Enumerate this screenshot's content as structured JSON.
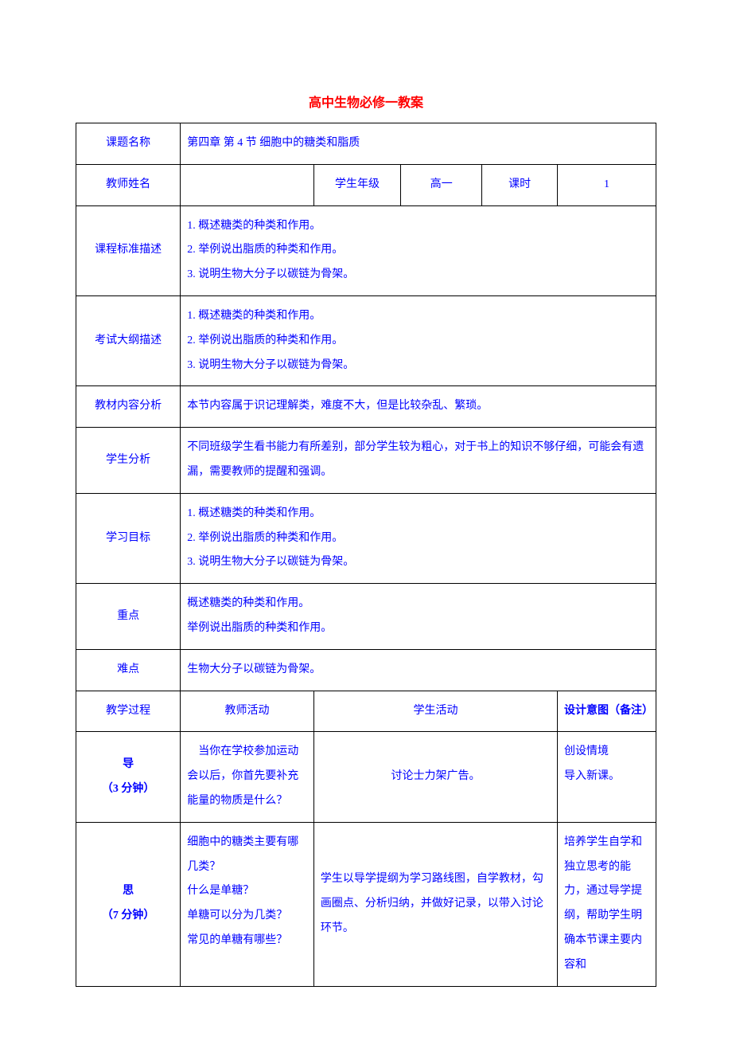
{
  "title": "高中生物必修一教案",
  "rows": {
    "topic_label": "课题名称",
    "topic_value": "第四章 第 4 节 细胞中的糖类和脂质",
    "teacher_label": "教师姓名",
    "teacher_value": "",
    "grade_label": "学生年级",
    "grade_value": "高一",
    "period_label": "课时",
    "period_value": "1",
    "standard_label": "课程标准描述",
    "standard_value": "1. 概述糖类的种类和作用。\n2. 举例说出脂质的种类和作用。\n3. 说明生物大分子以碳链为骨架。",
    "exam_label": "考试大纲描述",
    "exam_value": "1. 概述糖类的种类和作用。\n2. 举例说出脂质的种类和作用。\n3. 说明生物大分子以碳链为骨架。",
    "content_label": "教材内容分析",
    "content_value": "本节内容属于识记理解类，难度不大，但是比较杂乱、繁琐。",
    "student_label": "学生分析",
    "student_value": "不同班级学生看书能力有所差别，部分学生较为粗心，对于书上的知识不够仔细，可能会有遗漏，需要教师的提醒和强调。",
    "goal_label": "学习目标",
    "goal_value": "1. 概述糖类的种类和作用。\n2. 举例说出脂质的种类和作用。\n3. 说明生物大分子以碳链为骨架。",
    "keypoint_label": "重点",
    "keypoint_value": "概述糖类的种类和作用。\n举例说出脂质的种类和作用。",
    "difficulty_label": "难点",
    "difficulty_value": "生物大分子以碳链为骨架。",
    "process_label": "教学过程",
    "teacher_activity_label": "教师活动",
    "student_activity_label": "学生活动",
    "design_label": "设计意图（备注）",
    "intro_label": "导\n（3 分钟）",
    "intro_teacher": "　当你在学校参加运动会以后，你首先要补充能量的物质是什么？",
    "intro_student": "讨论士力架广告。",
    "intro_design": "创设情境\n导入新课。",
    "think_label": "思\n（7 分钟）",
    "think_teacher": "细胞中的糖类主要有哪几类？\n什么是单糖？\n单糖可以分为几类？\n常见的单糖有哪些？",
    "think_student": "学生以导学提纲为学习路线图，自学教材，勾画圈点、分析归纳，并做好记录，以带入讨论环节。",
    "think_design": "培养学生自学和独立思考的能力，通过导学提纲，帮助学生明确本节课主要内容和"
  }
}
